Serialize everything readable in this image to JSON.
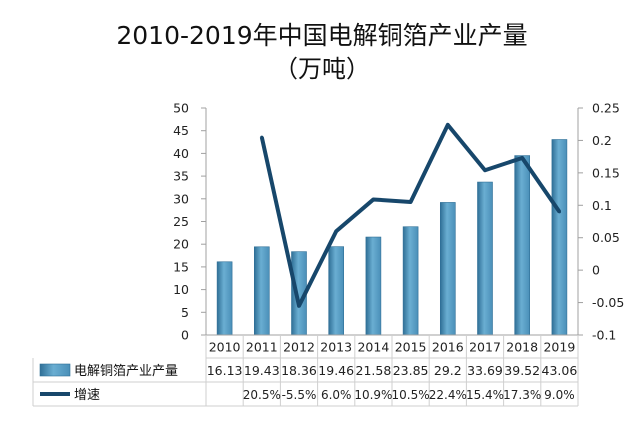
{
  "chart_data": {
    "type": "bar",
    "title": "2010-2019年中国电解铜箔产业产量",
    "subtitle": "（万吨）",
    "categories": [
      "2010",
      "2011",
      "2012",
      "2013",
      "2014",
      "2015",
      "2016",
      "2017",
      "2018",
      "2019"
    ],
    "series": [
      {
        "name": "电解铜箔产业产量",
        "type": "bar",
        "axis": "left",
        "values": [
          16.13,
          19.43,
          18.36,
          19.46,
          21.58,
          23.85,
          29.2,
          33.69,
          39.52,
          43.06
        ],
        "labels": [
          "16.13",
          "19.43",
          "18.36",
          "19.46",
          "21.58",
          "23.85",
          "29.2",
          "33.69",
          "39.52",
          "43.06"
        ]
      },
      {
        "name": "增速",
        "type": "line",
        "axis": "right",
        "values": [
          null,
          0.205,
          -0.055,
          0.06,
          0.109,
          0.105,
          0.224,
          0.154,
          0.173,
          0.09
        ],
        "labels": [
          "",
          "20.5%",
          "-5.5%",
          "6.0%",
          "10.9%",
          "10.5%",
          "22.4%",
          "15.4%",
          "17.3%",
          "9.0%"
        ]
      }
    ],
    "y_left": {
      "ylim": [
        0,
        50
      ],
      "ticks": [
        0,
        5,
        10,
        15,
        20,
        25,
        30,
        35,
        40,
        45,
        50
      ]
    },
    "y_right": {
      "ylim": [
        -0.1,
        0.25
      ],
      "ticks": [
        "-0.1",
        "-0.05",
        "0",
        "0.05",
        "0.1",
        "0.15",
        "0.2",
        "0.25"
      ]
    },
    "grid": false,
    "legend": "data-table",
    "colors": {
      "bar": "#5fa3c8",
      "bar_dark": "#2f6f96",
      "line": "#17476b"
    }
  }
}
